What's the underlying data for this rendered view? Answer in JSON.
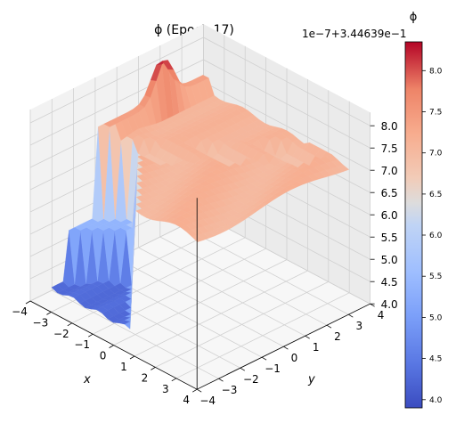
{
  "chart_data": {
    "type": "surface3d",
    "title": "ϕ (Epoch 17)",
    "xlabel": "x",
    "ylabel": "y",
    "xlim": [
      -4,
      4
    ],
    "ylim": [
      -4,
      4
    ],
    "zlim": [
      4.0,
      8.3
    ],
    "x_ticks": [
      "−4",
      "−3",
      "−2",
      "−1",
      "0",
      "1",
      "2",
      "3",
      "4"
    ],
    "y_ticks": [
      "−4",
      "−3",
      "−2",
      "−1",
      "0",
      "1",
      "2",
      "3",
      "4"
    ],
    "z_ticks": [
      "4.0",
      "4.5",
      "5.0",
      "5.5",
      "6.0",
      "6.5",
      "7.0",
      "7.5",
      "8.0"
    ],
    "z_offset_label": "1e−7+3.44639e−1",
    "grid": true,
    "colormap": "coolwarm",
    "colorbar": {
      "label": "ϕ",
      "range": [
        3.9,
        8.35
      ],
      "ticks": [
        "4.0",
        "4.5",
        "5.0",
        "5.5",
        "6.0",
        "6.5",
        "7.0",
        "7.5",
        "8.0"
      ]
    },
    "surface_description_values": {
      "plateau_level": 7.1,
      "ridge_max": 8.3,
      "low_region_level": 4.3,
      "mid_region_level": 5.4
    }
  }
}
